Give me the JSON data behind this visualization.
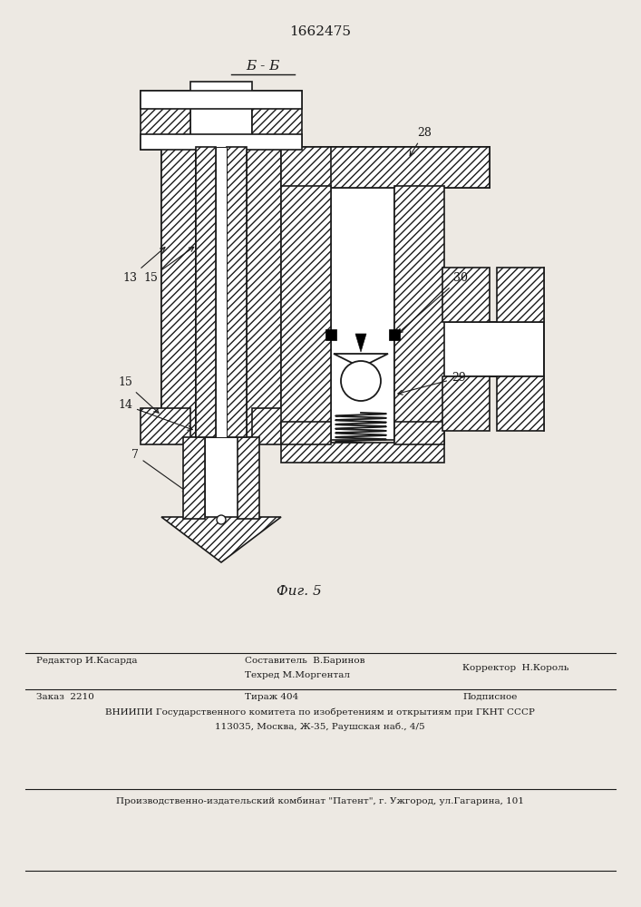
{
  "patent_number": "1662475",
  "fig_label": "Фиг. 5",
  "section_label": "Б - Б",
  "bg_color": "#ede9e3",
  "lc": "#1a1a1a",
  "footer": {
    "col1_row1": "Редактор И.Касарда",
    "col2_row1_top": "Составитель  В.Баринов",
    "col2_row1_bot": "Техред М.Моргентал",
    "col3_row1": "Корректор  Н.Король",
    "col1_row2": "Заказ  2210",
    "col2_row2": "Тираж 404",
    "col3_row2": "Подписное",
    "row3": "ВНИИПИ Государственного комитета по изобретениям и открытиям при ГКНТ СССР",
    "row4": "113035, Москва, Ж-35, Раушская наб., 4/5",
    "row5": "Производственно-издательский комбинат \"Патент\", г. Ужгород, ул.Гагарина, 101"
  }
}
